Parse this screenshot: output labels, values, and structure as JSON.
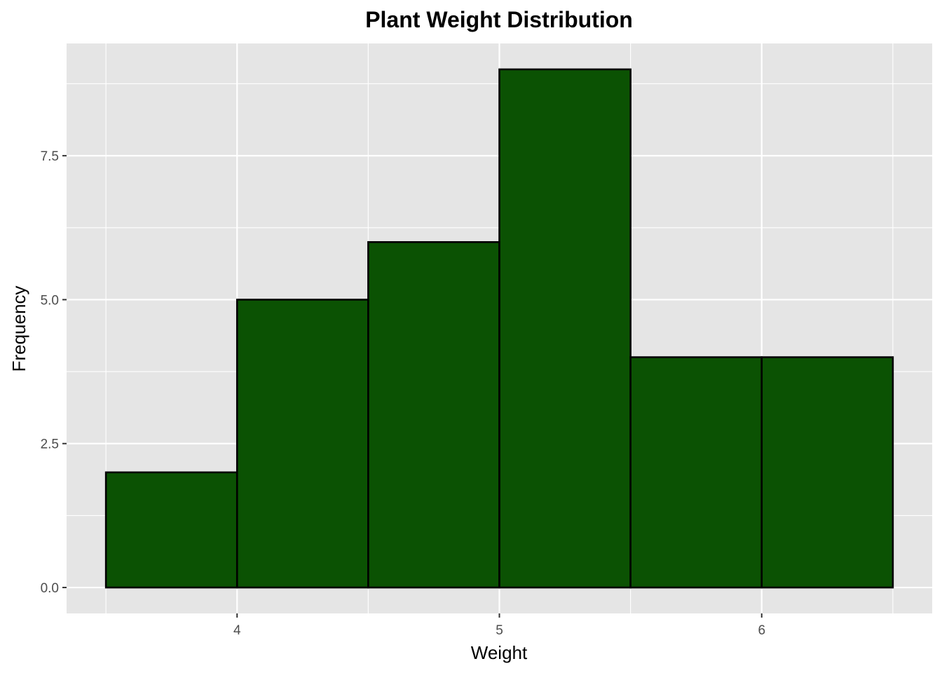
{
  "chart_data": {
    "type": "bar",
    "title": "Plant Weight Distribution",
    "xlabel": "Weight",
    "ylabel": "Frequency",
    "bins": [
      {
        "x0": 3.5,
        "x1": 4.0,
        "count": 2
      },
      {
        "x0": 4.0,
        "x1": 4.5,
        "count": 5
      },
      {
        "x0": 4.5,
        "x1": 5.0,
        "count": 6
      },
      {
        "x0": 5.0,
        "x1": 5.5,
        "count": 9
      },
      {
        "x0": 5.5,
        "x1": 6.0,
        "count": 4
      },
      {
        "x0": 6.0,
        "x1": 6.5,
        "count": 4
      }
    ],
    "x_ticks": [
      4,
      5,
      6
    ],
    "x_tick_labels": [
      "4",
      "5",
      "6"
    ],
    "y_ticks": [
      0,
      2.5,
      5,
      7.5
    ],
    "y_tick_labels": [
      "0.0",
      "2.5",
      "5.0",
      "7.5"
    ],
    "xlim": [
      3.35,
      6.65
    ],
    "ylim": [
      -0.45,
      9.45
    ],
    "grid": true,
    "colors": {
      "bar_fill": "#0b5203",
      "bar_stroke": "#000000",
      "panel": "#e5e5e5",
      "grid": "#ffffff"
    }
  }
}
